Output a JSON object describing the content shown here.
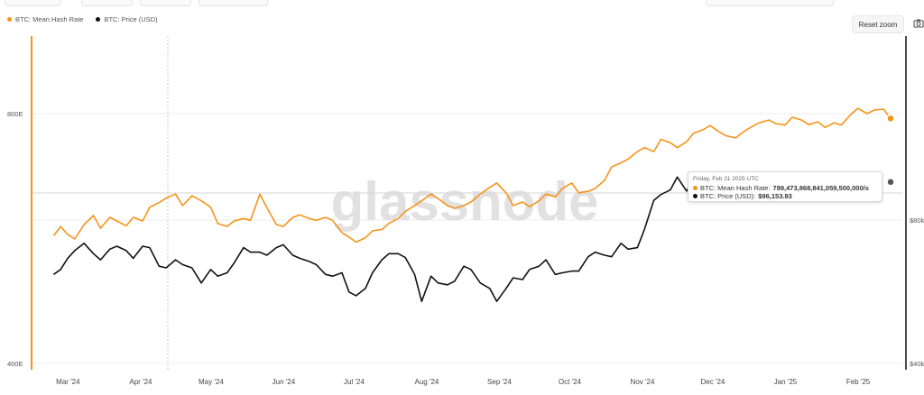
{
  "toolbar": {
    "reset_zoom": "Reset zoom"
  },
  "colors": {
    "hash_rate": "#f7931a",
    "price": "#111111",
    "grid": "#ececec"
  },
  "icons": {
    "screenshot": "camera-icon"
  },
  "watermark": "glassnode",
  "tooltip": {
    "date": "Friday, Feb 21 2025 UTC",
    "rows": [
      {
        "label": "BTC: Mean Hash Rate:",
        "value": "789,473,868,841,059,500,000/s"
      },
      {
        "label": "BTC: Price (USD):",
        "value": "$96,153.83"
      }
    ]
  },
  "chart_data": {
    "type": "line",
    "legend_position": "top-left",
    "x_tick_labels": [
      "Mar '24",
      "Apr '24",
      "May '24",
      "Jun '24",
      "Jul '24",
      "Aug '24",
      "Sep '24",
      "Oct '24",
      "Nov '24",
      "Dec '24",
      "Jan '25",
      "Feb '25"
    ],
    "left_axis": {
      "scale": "log",
      "tick_labels": [
        "800E",
        "400E"
      ],
      "tick_values": [
        800,
        400
      ],
      "unit": "E/s"
    },
    "right_axis": {
      "scale": "log",
      "tick_labels": [
        "$80k",
        "$40k"
      ],
      "tick_values": [
        80000,
        40000
      ]
    },
    "series": [
      {
        "name": "BTC: Mean Hash Rate",
        "axis": "left",
        "color": "#f7931a",
        "points": [
          [
            "2024-03-01",
            570
          ],
          [
            "2024-03-04",
            585
          ],
          [
            "2024-03-07",
            572
          ],
          [
            "2024-03-10",
            565
          ],
          [
            "2024-03-14",
            588
          ],
          [
            "2024-03-18",
            603
          ],
          [
            "2024-03-21",
            582
          ],
          [
            "2024-03-25",
            600
          ],
          [
            "2024-03-28",
            594
          ],
          [
            "2024-04-01",
            586
          ],
          [
            "2024-04-04",
            600
          ],
          [
            "2024-04-08",
            594
          ],
          [
            "2024-04-11",
            617
          ],
          [
            "2024-04-15",
            625
          ],
          [
            "2024-04-18",
            633
          ],
          [
            "2024-04-22",
            640
          ],
          [
            "2024-04-25",
            620
          ],
          [
            "2024-04-29",
            637
          ],
          [
            "2024-05-03",
            628
          ],
          [
            "2024-05-07",
            617
          ],
          [
            "2024-05-10",
            590
          ],
          [
            "2024-05-14",
            585
          ],
          [
            "2024-05-17",
            594
          ],
          [
            "2024-05-21",
            598
          ],
          [
            "2024-05-24",
            595
          ],
          [
            "2024-05-28",
            640
          ],
          [
            "2024-05-31",
            616
          ],
          [
            "2024-06-04",
            588
          ],
          [
            "2024-06-07",
            585
          ],
          [
            "2024-06-11",
            600
          ],
          [
            "2024-06-14",
            604
          ],
          [
            "2024-06-18",
            598
          ],
          [
            "2024-06-21",
            595
          ],
          [
            "2024-06-25",
            600
          ],
          [
            "2024-06-28",
            595
          ],
          [
            "2024-07-02",
            575
          ],
          [
            "2024-07-05",
            568
          ],
          [
            "2024-07-08",
            560
          ],
          [
            "2024-07-12",
            567
          ],
          [
            "2024-07-15",
            578
          ],
          [
            "2024-07-19",
            580
          ],
          [
            "2024-07-22",
            590
          ],
          [
            "2024-07-26",
            598
          ],
          [
            "2024-07-29",
            610
          ],
          [
            "2024-08-02",
            620
          ],
          [
            "2024-08-05",
            628
          ],
          [
            "2024-08-09",
            640
          ],
          [
            "2024-08-12",
            632
          ],
          [
            "2024-08-16",
            620
          ],
          [
            "2024-08-19",
            615
          ],
          [
            "2024-08-23",
            620
          ],
          [
            "2024-08-26",
            626
          ],
          [
            "2024-08-30",
            640
          ],
          [
            "2024-09-03",
            652
          ],
          [
            "2024-09-06",
            660
          ],
          [
            "2024-09-10",
            642
          ],
          [
            "2024-09-13",
            620
          ],
          [
            "2024-09-17",
            626
          ],
          [
            "2024-09-20",
            618
          ],
          [
            "2024-09-24",
            628
          ],
          [
            "2024-09-27",
            640
          ],
          [
            "2024-10-01",
            635
          ],
          [
            "2024-10-04",
            650
          ],
          [
            "2024-10-08",
            660
          ],
          [
            "2024-10-11",
            642
          ],
          [
            "2024-10-15",
            645
          ],
          [
            "2024-10-18",
            650
          ],
          [
            "2024-10-22",
            665
          ],
          [
            "2024-10-25",
            690
          ],
          [
            "2024-10-29",
            698
          ],
          [
            "2024-11-01",
            705
          ],
          [
            "2024-11-05",
            720
          ],
          [
            "2024-11-08",
            728
          ],
          [
            "2024-11-12",
            720
          ],
          [
            "2024-11-15",
            745
          ],
          [
            "2024-11-19",
            738
          ],
          [
            "2024-11-22",
            728
          ],
          [
            "2024-11-26",
            740
          ],
          [
            "2024-11-29",
            758
          ],
          [
            "2024-12-03",
            765
          ],
          [
            "2024-12-06",
            774
          ],
          [
            "2024-12-10",
            760
          ],
          [
            "2024-12-13",
            752
          ],
          [
            "2024-12-17",
            748
          ],
          [
            "2024-12-20",
            760
          ],
          [
            "2024-12-24",
            772
          ],
          [
            "2024-12-27",
            780
          ],
          [
            "2024-12-31",
            786
          ],
          [
            "2025-01-03",
            778
          ],
          [
            "2025-01-07",
            775
          ],
          [
            "2025-01-10",
            792
          ],
          [
            "2025-01-14",
            786
          ],
          [
            "2025-01-17",
            776
          ],
          [
            "2025-01-21",
            782
          ],
          [
            "2025-01-24",
            770
          ],
          [
            "2025-01-28",
            780
          ],
          [
            "2025-01-31",
            775
          ],
          [
            "2025-02-04",
            798
          ],
          [
            "2025-02-07",
            812
          ],
          [
            "2025-02-11",
            800
          ],
          [
            "2025-02-14",
            808
          ],
          [
            "2025-02-18",
            810
          ],
          [
            "2025-02-21",
            789
          ]
        ]
      },
      {
        "name": "BTC: Price (USD)",
        "axis": "right",
        "color": "#111111",
        "points": [
          [
            "2024-03-01",
            61500
          ],
          [
            "2024-03-04",
            63000
          ],
          [
            "2024-03-07",
            66500
          ],
          [
            "2024-03-10",
            69000
          ],
          [
            "2024-03-14",
            71500
          ],
          [
            "2024-03-18",
            68000
          ],
          [
            "2024-03-21",
            66000
          ],
          [
            "2024-03-25",
            69500
          ],
          [
            "2024-03-28",
            70500
          ],
          [
            "2024-04-01",
            69000
          ],
          [
            "2024-04-04",
            66500
          ],
          [
            "2024-04-08",
            70500
          ],
          [
            "2024-04-11",
            70000
          ],
          [
            "2024-04-15",
            64000
          ],
          [
            "2024-04-18",
            63500
          ],
          [
            "2024-04-22",
            66000
          ],
          [
            "2024-04-25",
            64500
          ],
          [
            "2024-04-29",
            63500
          ],
          [
            "2024-05-03",
            59000
          ],
          [
            "2024-05-07",
            63000
          ],
          [
            "2024-05-10",
            61000
          ],
          [
            "2024-05-14",
            62000
          ],
          [
            "2024-05-17",
            65000
          ],
          [
            "2024-05-21",
            70000
          ],
          [
            "2024-05-24",
            68500
          ],
          [
            "2024-05-28",
            68500
          ],
          [
            "2024-05-31",
            67500
          ],
          [
            "2024-06-04",
            70000
          ],
          [
            "2024-06-07",
            71000
          ],
          [
            "2024-06-11",
            67500
          ],
          [
            "2024-06-14",
            66500
          ],
          [
            "2024-06-18",
            65500
          ],
          [
            "2024-06-21",
            64500
          ],
          [
            "2024-06-25",
            61500
          ],
          [
            "2024-06-28",
            61000
          ],
          [
            "2024-07-02",
            62000
          ],
          [
            "2024-07-05",
            56500
          ],
          [
            "2024-07-08",
            55500
          ],
          [
            "2024-07-12",
            57500
          ],
          [
            "2024-07-15",
            62000
          ],
          [
            "2024-07-19",
            66000
          ],
          [
            "2024-07-22",
            68000
          ],
          [
            "2024-07-26",
            68000
          ],
          [
            "2024-07-29",
            66800
          ],
          [
            "2024-08-02",
            61500
          ],
          [
            "2024-08-05",
            54000
          ],
          [
            "2024-08-09",
            61000
          ],
          [
            "2024-08-12",
            59000
          ],
          [
            "2024-08-16",
            58500
          ],
          [
            "2024-08-19",
            59500
          ],
          [
            "2024-08-23",
            64000
          ],
          [
            "2024-08-26",
            63000
          ],
          [
            "2024-08-30",
            59000
          ],
          [
            "2024-09-03",
            57500
          ],
          [
            "2024-09-06",
            54000
          ],
          [
            "2024-09-10",
            57500
          ],
          [
            "2024-09-13",
            60500
          ],
          [
            "2024-09-17",
            60000
          ],
          [
            "2024-09-20",
            63000
          ],
          [
            "2024-09-24",
            64000
          ],
          [
            "2024-09-27",
            66000
          ],
          [
            "2024-10-01",
            61500
          ],
          [
            "2024-10-04",
            62000
          ],
          [
            "2024-10-08",
            62500
          ],
          [
            "2024-10-11",
            62500
          ],
          [
            "2024-10-15",
            67000
          ],
          [
            "2024-10-18",
            68500
          ],
          [
            "2024-10-22",
            67500
          ],
          [
            "2024-10-25",
            67000
          ],
          [
            "2024-10-29",
            71500
          ],
          [
            "2024-11-01",
            69500
          ],
          [
            "2024-11-05",
            70000
          ],
          [
            "2024-11-08",
            76500
          ],
          [
            "2024-11-12",
            88000
          ],
          [
            "2024-11-15",
            90500
          ],
          [
            "2024-11-19",
            92500
          ],
          [
            "2024-11-22",
            98500
          ],
          [
            "2024-11-26",
            92000
          ],
          [
            "2024-11-29",
            97500
          ]
        ]
      }
    ],
    "hover_date": "2025-02-21",
    "hover_values": {
      "hash_rate": 789.473868841059,
      "price": 96153.83
    }
  }
}
